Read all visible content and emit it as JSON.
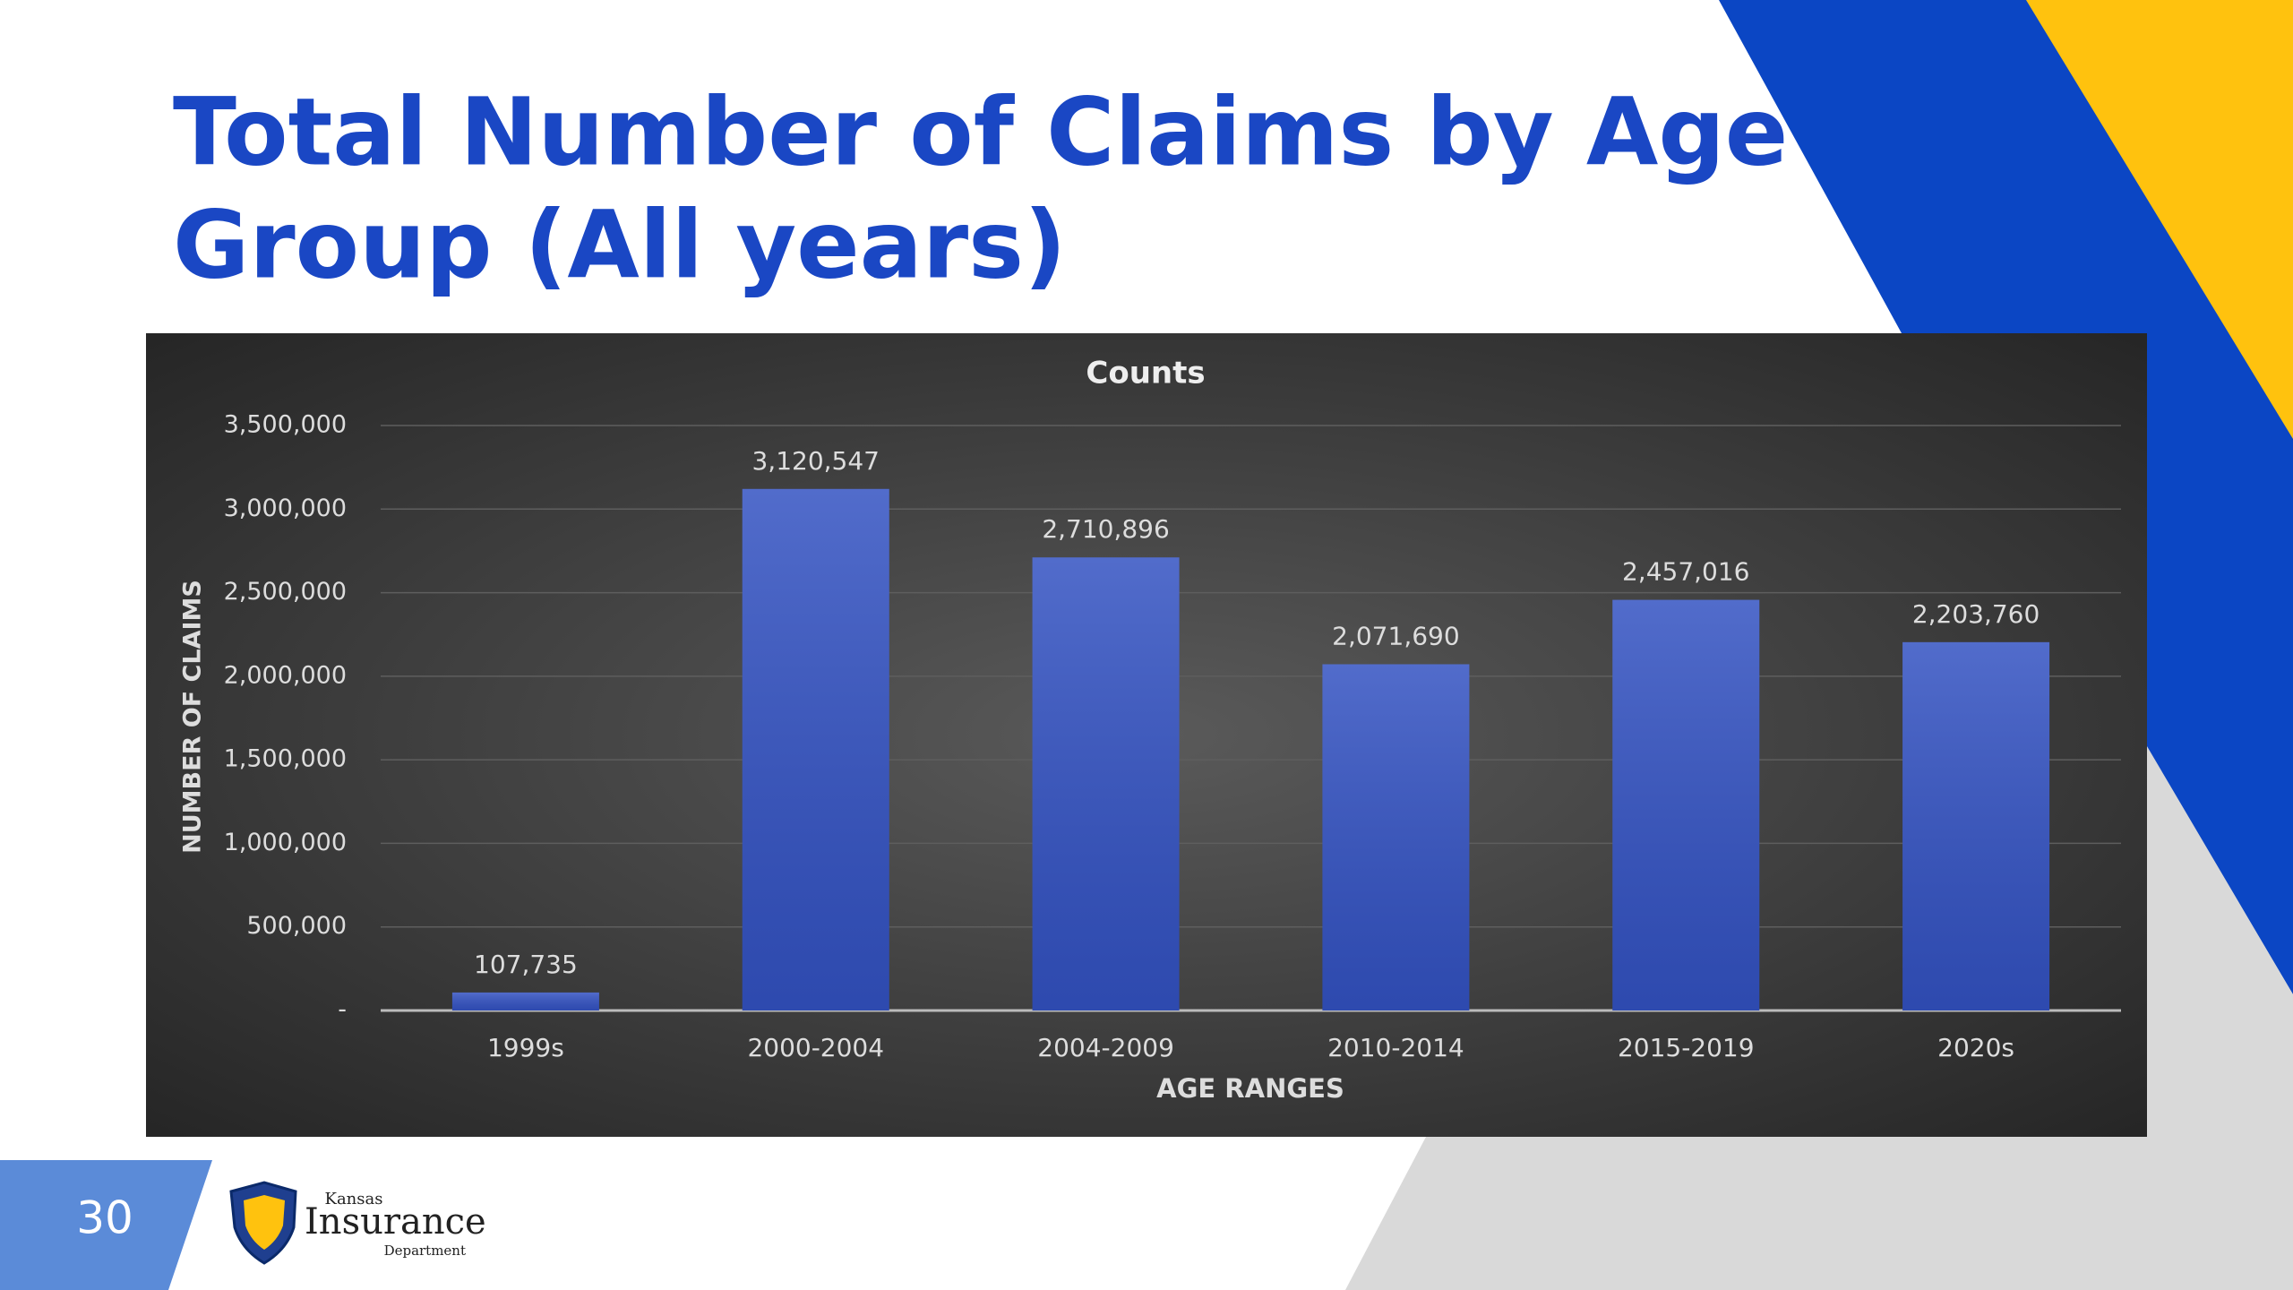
{
  "slide": {
    "title_lines": [
      "Total Number of Claims by Age",
      "Group (All years)"
    ],
    "page_number": "30",
    "logo": {
      "top": "Kansas",
      "main": "Insurance",
      "bottom": "Department"
    }
  },
  "chart_data": {
    "type": "bar",
    "title": "Counts",
    "x_label": "AGE RANGES",
    "y_label": "NUMBER OF CLAIMS",
    "categories": [
      "1999s",
      "2000-2004",
      "2004-2009",
      "2010-2014",
      "2015-2019",
      "2020s"
    ],
    "values": [
      107735,
      3120547,
      2710896,
      2071690,
      2457016,
      2203760
    ],
    "value_labels": [
      "107,735",
      "3,120,547",
      "2,710,896",
      "2,071,690",
      "2,457,016",
      "2,203,760"
    ],
    "color": "#3352c2",
    "ylim": [
      0,
      3500000
    ],
    "yticks": [
      {
        "value": 0,
        "label": "-"
      },
      {
        "value": 500000,
        "label": "500,000"
      },
      {
        "value": 1000000,
        "label": "1,000,000"
      },
      {
        "value": 1500000,
        "label": "1,500,000"
      },
      {
        "value": 2000000,
        "label": "2,000,000"
      },
      {
        "value": 2500000,
        "label": "2,500,000"
      },
      {
        "value": 3000000,
        "label": "3,000,000"
      },
      {
        "value": 3500000,
        "label": "3,500,000"
      }
    ],
    "grid": true
  }
}
